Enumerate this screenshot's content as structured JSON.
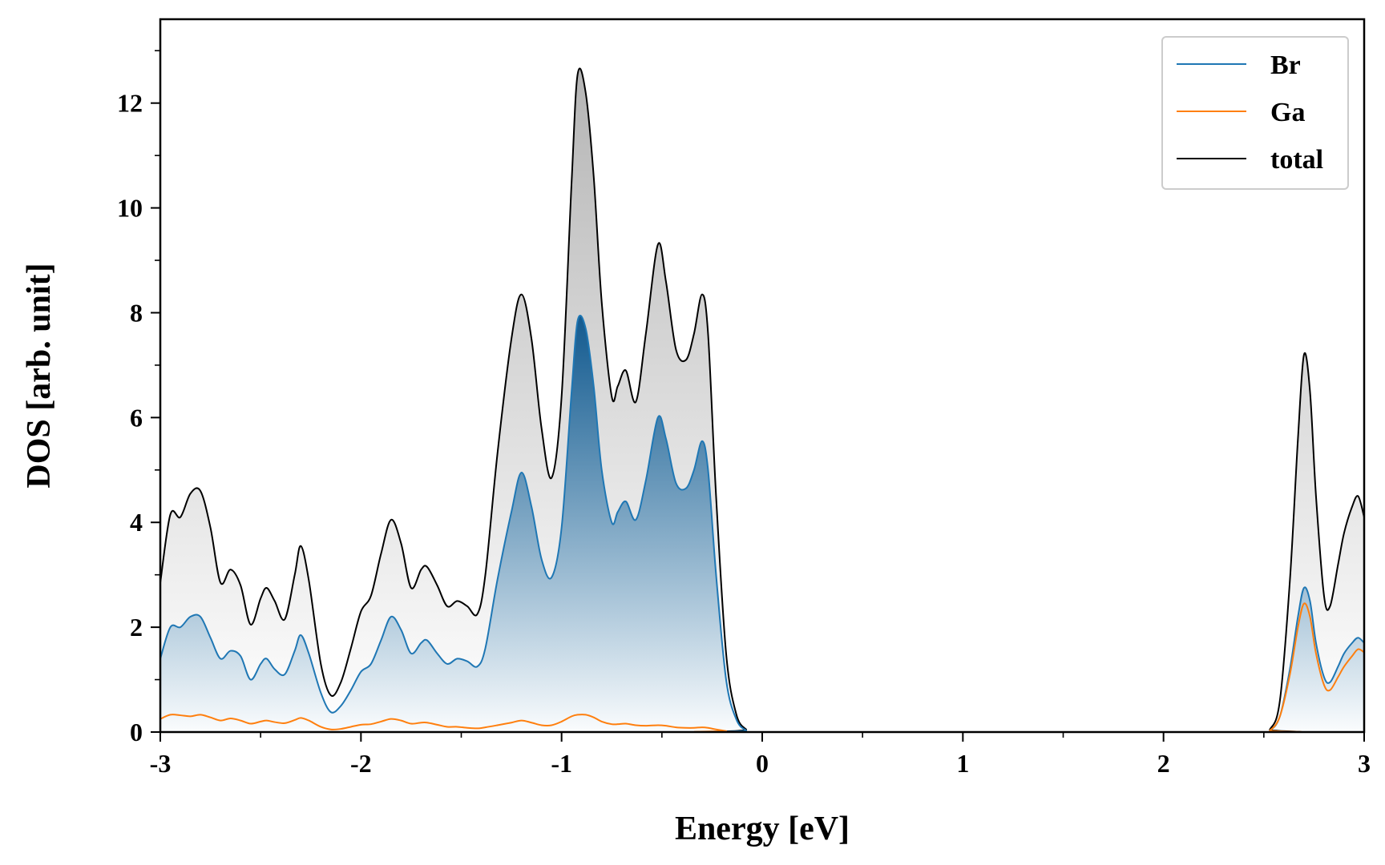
{
  "chart_data": {
    "type": "area",
    "xlabel": "Energy [eV]",
    "ylabel": "DOS [arb. unit]",
    "xlim": [
      -3,
      3
    ],
    "ylim": [
      0,
      13.6
    ],
    "xticks": [
      -3,
      -2,
      -1,
      0,
      1,
      2,
      3
    ],
    "xtick_labels": [
      "-3",
      "-2",
      "-1",
      "0",
      "1",
      "2",
      "3"
    ],
    "yticks": [
      0,
      2,
      4,
      6,
      8,
      10,
      12
    ],
    "ytick_labels": [
      "0",
      "2",
      "4",
      "6",
      "8",
      "10",
      "12"
    ],
    "grid": false,
    "legend_position": "top-right",
    "colors": {
      "Br": "#1f77b4",
      "Ga": "#ff7f0e",
      "total": "#000000"
    },
    "series": [
      {
        "name": "total",
        "points": [
          [
            -3.0,
            2.85
          ],
          [
            -2.95,
            4.15
          ],
          [
            -2.9,
            4.1
          ],
          [
            -2.85,
            4.55
          ],
          [
            -2.8,
            4.6
          ],
          [
            -2.75,
            3.9
          ],
          [
            -2.7,
            2.85
          ],
          [
            -2.65,
            3.1
          ],
          [
            -2.6,
            2.8
          ],
          [
            -2.55,
            2.05
          ],
          [
            -2.5,
            2.55
          ],
          [
            -2.47,
            2.75
          ],
          [
            -2.43,
            2.5
          ],
          [
            -2.38,
            2.15
          ],
          [
            -2.33,
            3.0
          ],
          [
            -2.3,
            3.55
          ],
          [
            -2.26,
            2.9
          ],
          [
            -2.2,
            1.3
          ],
          [
            -2.15,
            0.7
          ],
          [
            -2.1,
            0.95
          ],
          [
            -2.05,
            1.6
          ],
          [
            -2.0,
            2.3
          ],
          [
            -1.95,
            2.6
          ],
          [
            -1.9,
            3.4
          ],
          [
            -1.85,
            4.05
          ],
          [
            -1.8,
            3.6
          ],
          [
            -1.75,
            2.75
          ],
          [
            -1.7,
            3.1
          ],
          [
            -1.67,
            3.15
          ],
          [
            -1.62,
            2.8
          ],
          [
            -1.57,
            2.4
          ],
          [
            -1.52,
            2.5
          ],
          [
            -1.47,
            2.4
          ],
          [
            -1.42,
            2.25
          ],
          [
            -1.38,
            3.0
          ],
          [
            -1.32,
            5.3
          ],
          [
            -1.25,
            7.5
          ],
          [
            -1.2,
            8.35
          ],
          [
            -1.15,
            7.5
          ],
          [
            -1.1,
            5.8
          ],
          [
            -1.05,
            4.85
          ],
          [
            -1.0,
            6.4
          ],
          [
            -0.95,
            10.5
          ],
          [
            -0.92,
            12.55
          ],
          [
            -0.88,
            12.2
          ],
          [
            -0.84,
            10.6
          ],
          [
            -0.8,
            8.2
          ],
          [
            -0.75,
            6.4
          ],
          [
            -0.72,
            6.6
          ],
          [
            -0.68,
            6.9
          ],
          [
            -0.63,
            6.3
          ],
          [
            -0.58,
            7.6
          ],
          [
            -0.52,
            9.3
          ],
          [
            -0.48,
            8.6
          ],
          [
            -0.43,
            7.3
          ],
          [
            -0.38,
            7.1
          ],
          [
            -0.34,
            7.6
          ],
          [
            -0.3,
            8.35
          ],
          [
            -0.27,
            7.6
          ],
          [
            -0.23,
            4.5
          ],
          [
            -0.18,
            1.5
          ],
          [
            -0.13,
            0.35
          ],
          [
            -0.08,
            0.05
          ],
          [
            -0.03,
            0.0
          ],
          [
            2.48,
            0.0
          ],
          [
            2.53,
            0.05
          ],
          [
            2.58,
            0.6
          ],
          [
            2.63,
            2.9
          ],
          [
            2.67,
            5.6
          ],
          [
            2.7,
            7.2
          ],
          [
            2.73,
            6.5
          ],
          [
            2.76,
            4.5
          ],
          [
            2.8,
            2.6
          ],
          [
            2.83,
            2.4
          ],
          [
            2.87,
            3.2
          ],
          [
            2.9,
            3.8
          ],
          [
            2.94,
            4.3
          ],
          [
            2.97,
            4.5
          ],
          [
            3.0,
            4.1
          ]
        ]
      },
      {
        "name": "Br",
        "points": [
          [
            -3.0,
            1.4
          ],
          [
            -2.95,
            2.0
          ],
          [
            -2.9,
            2.0
          ],
          [
            -2.85,
            2.2
          ],
          [
            -2.8,
            2.2
          ],
          [
            -2.75,
            1.8
          ],
          [
            -2.7,
            1.4
          ],
          [
            -2.65,
            1.55
          ],
          [
            -2.6,
            1.45
          ],
          [
            -2.55,
            1.0
          ],
          [
            -2.5,
            1.3
          ],
          [
            -2.47,
            1.4
          ],
          [
            -2.43,
            1.2
          ],
          [
            -2.38,
            1.1
          ],
          [
            -2.33,
            1.55
          ],
          [
            -2.3,
            1.85
          ],
          [
            -2.26,
            1.5
          ],
          [
            -2.2,
            0.75
          ],
          [
            -2.15,
            0.38
          ],
          [
            -2.1,
            0.5
          ],
          [
            -2.05,
            0.8
          ],
          [
            -2.0,
            1.15
          ],
          [
            -1.95,
            1.3
          ],
          [
            -1.9,
            1.75
          ],
          [
            -1.85,
            2.2
          ],
          [
            -1.8,
            1.95
          ],
          [
            -1.75,
            1.5
          ],
          [
            -1.7,
            1.7
          ],
          [
            -1.67,
            1.75
          ],
          [
            -1.62,
            1.5
          ],
          [
            -1.57,
            1.3
          ],
          [
            -1.52,
            1.4
          ],
          [
            -1.47,
            1.35
          ],
          [
            -1.42,
            1.25
          ],
          [
            -1.38,
            1.6
          ],
          [
            -1.32,
            2.9
          ],
          [
            -1.25,
            4.2
          ],
          [
            -1.2,
            4.95
          ],
          [
            -1.15,
            4.3
          ],
          [
            -1.1,
            3.3
          ],
          [
            -1.05,
            2.95
          ],
          [
            -1.0,
            3.9
          ],
          [
            -0.95,
            6.5
          ],
          [
            -0.92,
            7.85
          ],
          [
            -0.88,
            7.7
          ],
          [
            -0.84,
            6.6
          ],
          [
            -0.8,
            5.0
          ],
          [
            -0.75,
            4.0
          ],
          [
            -0.72,
            4.2
          ],
          [
            -0.68,
            4.4
          ],
          [
            -0.63,
            4.05
          ],
          [
            -0.58,
            4.8
          ],
          [
            -0.52,
            6.0
          ],
          [
            -0.48,
            5.6
          ],
          [
            -0.43,
            4.75
          ],
          [
            -0.38,
            4.65
          ],
          [
            -0.34,
            5.0
          ],
          [
            -0.3,
            5.55
          ],
          [
            -0.27,
            5.0
          ],
          [
            -0.23,
            3.0
          ],
          [
            -0.18,
            1.0
          ],
          [
            -0.13,
            0.25
          ],
          [
            -0.08,
            0.03
          ],
          [
            -0.03,
            0.0
          ],
          [
            2.48,
            0.0
          ],
          [
            2.53,
            0.03
          ],
          [
            2.58,
            0.3
          ],
          [
            2.63,
            1.2
          ],
          [
            2.67,
            2.2
          ],
          [
            2.7,
            2.75
          ],
          [
            2.73,
            2.5
          ],
          [
            2.76,
            1.7
          ],
          [
            2.8,
            1.05
          ],
          [
            2.83,
            0.95
          ],
          [
            2.87,
            1.25
          ],
          [
            2.9,
            1.5
          ],
          [
            2.94,
            1.7
          ],
          [
            2.97,
            1.8
          ],
          [
            3.0,
            1.7
          ]
        ]
      },
      {
        "name": "Ga",
        "points": [
          [
            -3.0,
            0.25
          ],
          [
            -2.95,
            0.33
          ],
          [
            -2.9,
            0.32
          ],
          [
            -2.85,
            0.3
          ],
          [
            -2.8,
            0.33
          ],
          [
            -2.75,
            0.28
          ],
          [
            -2.7,
            0.22
          ],
          [
            -2.65,
            0.26
          ],
          [
            -2.6,
            0.22
          ],
          [
            -2.55,
            0.16
          ],
          [
            -2.5,
            0.2
          ],
          [
            -2.47,
            0.22
          ],
          [
            -2.43,
            0.19
          ],
          [
            -2.38,
            0.17
          ],
          [
            -2.33,
            0.23
          ],
          [
            -2.3,
            0.27
          ],
          [
            -2.26,
            0.22
          ],
          [
            -2.2,
            0.1
          ],
          [
            -2.15,
            0.05
          ],
          [
            -2.1,
            0.06
          ],
          [
            -2.05,
            0.1
          ],
          [
            -2.0,
            0.14
          ],
          [
            -1.95,
            0.15
          ],
          [
            -1.9,
            0.2
          ],
          [
            -1.85,
            0.25
          ],
          [
            -1.8,
            0.22
          ],
          [
            -1.75,
            0.16
          ],
          [
            -1.7,
            0.18
          ],
          [
            -1.67,
            0.18
          ],
          [
            -1.62,
            0.14
          ],
          [
            -1.57,
            0.1
          ],
          [
            -1.52,
            0.1
          ],
          [
            -1.47,
            0.08
          ],
          [
            -1.42,
            0.07
          ],
          [
            -1.38,
            0.09
          ],
          [
            -1.32,
            0.13
          ],
          [
            -1.25,
            0.18
          ],
          [
            -1.2,
            0.22
          ],
          [
            -1.15,
            0.18
          ],
          [
            -1.1,
            0.13
          ],
          [
            -1.05,
            0.13
          ],
          [
            -1.0,
            0.2
          ],
          [
            -0.95,
            0.3
          ],
          [
            -0.92,
            0.33
          ],
          [
            -0.88,
            0.33
          ],
          [
            -0.84,
            0.28
          ],
          [
            -0.8,
            0.2
          ],
          [
            -0.75,
            0.15
          ],
          [
            -0.72,
            0.15
          ],
          [
            -0.68,
            0.16
          ],
          [
            -0.63,
            0.13
          ],
          [
            -0.58,
            0.12
          ],
          [
            -0.52,
            0.13
          ],
          [
            -0.48,
            0.12
          ],
          [
            -0.43,
            0.09
          ],
          [
            -0.38,
            0.08
          ],
          [
            -0.34,
            0.08
          ],
          [
            -0.3,
            0.09
          ],
          [
            -0.27,
            0.08
          ],
          [
            -0.23,
            0.05
          ],
          [
            -0.18,
            0.02
          ],
          [
            -0.13,
            0.0
          ],
          [
            2.48,
            0.0
          ],
          [
            2.53,
            0.03
          ],
          [
            2.58,
            0.3
          ],
          [
            2.63,
            1.1
          ],
          [
            2.67,
            2.0
          ],
          [
            2.7,
            2.45
          ],
          [
            2.73,
            2.2
          ],
          [
            2.76,
            1.5
          ],
          [
            2.8,
            0.9
          ],
          [
            2.83,
            0.8
          ],
          [
            2.87,
            1.05
          ],
          [
            2.9,
            1.25
          ],
          [
            2.94,
            1.45
          ],
          [
            2.97,
            1.58
          ],
          [
            3.0,
            1.52
          ]
        ]
      }
    ],
    "legend": [
      {
        "name": "Br",
        "label": "Br"
      },
      {
        "name": "Ga",
        "label": "Ga"
      },
      {
        "name": "total",
        "label": "total"
      }
    ]
  }
}
